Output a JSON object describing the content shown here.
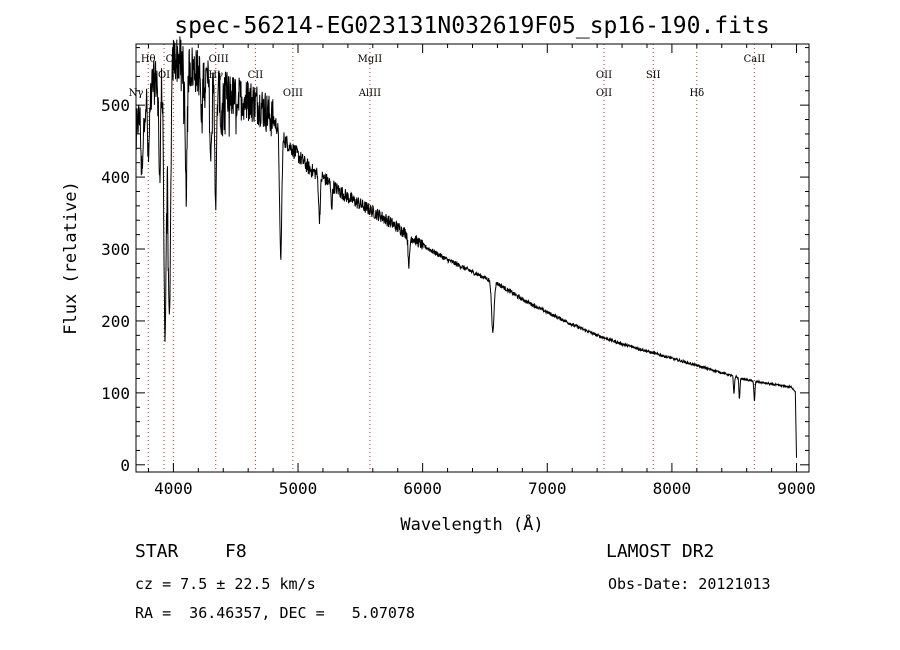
{
  "chart_data": {
    "type": "line",
    "title": "spec-56214-EG023131N032619F05_sp16-190.fits",
    "xlabel": "Wavelength (Å)",
    "ylabel": "Flux (relative)",
    "xlim": [
      3700,
      9100
    ],
    "ylim": [
      -10,
      585
    ],
    "x_ticks": [
      4000,
      5000,
      6000,
      7000,
      8000,
      9000
    ],
    "y_ticks": [
      0,
      100,
      200,
      300,
      400,
      500
    ],
    "x_tick_labels": [
      "4000",
      "5000",
      "6000",
      "7000",
      "8000",
      "9000"
    ],
    "y_tick_labels": [
      "0",
      "100",
      "200",
      "300",
      "400",
      "500"
    ],
    "colors": {
      "line": "#000000",
      "marker": "#c03030",
      "axis": "#000000"
    },
    "continuum": {
      "x": [
        3700,
        3800,
        3900,
        4000,
        4100,
        4200,
        4300,
        4400,
        4500,
        4600,
        4700,
        4800,
        4900,
        5000,
        5100,
        5200,
        5300,
        5400,
        5500,
        5600,
        5700,
        5800,
        5900,
        6000,
        6200,
        6400,
        6600,
        6800,
        7000,
        7200,
        7400,
        7600,
        7800,
        8000,
        8200,
        8400,
        8600,
        8800,
        8960,
        8990,
        9000
      ],
      "y": [
        470,
        520,
        545,
        565,
        560,
        545,
        530,
        520,
        510,
        508,
        500,
        480,
        450,
        430,
        410,
        400,
        385,
        372,
        362,
        352,
        342,
        330,
        318,
        305,
        285,
        268,
        252,
        230,
        212,
        195,
        180,
        168,
        158,
        148,
        138,
        128,
        118,
        112,
        108,
        102,
        10
      ]
    },
    "absorption_features": [
      {
        "x": 3750,
        "depth": 90,
        "width": 12
      },
      {
        "x": 3800,
        "depth": 100,
        "width": 10
      },
      {
        "x": 3890,
        "depth": 140,
        "width": 10
      },
      {
        "x": 3933,
        "depth": 370,
        "width": 14
      },
      {
        "x": 3968,
        "depth": 360,
        "width": 14
      },
      {
        "x": 4102,
        "depth": 180,
        "width": 12
      },
      {
        "x": 4226,
        "depth": 60,
        "width": 8
      },
      {
        "x": 4300,
        "depth": 110,
        "width": 10
      },
      {
        "x": 4340,
        "depth": 160,
        "width": 10
      },
      {
        "x": 4383,
        "depth": 50,
        "width": 8
      },
      {
        "x": 4861,
        "depth": 175,
        "width": 12
      },
      {
        "x": 5172,
        "depth": 60,
        "width": 10
      },
      {
        "x": 5270,
        "depth": 30,
        "width": 8
      },
      {
        "x": 5890,
        "depth": 40,
        "width": 10
      },
      {
        "x": 6563,
        "depth": 70,
        "width": 14
      },
      {
        "x": 8498,
        "depth": 25,
        "width": 6
      },
      {
        "x": 8542,
        "depth": 30,
        "width": 6
      },
      {
        "x": 8662,
        "depth": 28,
        "width": 6
      }
    ],
    "line_markers": [
      {
        "label": "Hθ",
        "x": 3798,
        "row": 1
      },
      {
        "label": "Nγ",
        "x": 3700,
        "row": 3
      },
      {
        "label": "OI",
        "x": 3925,
        "row": 2
      },
      {
        "label": "CII",
        "x": 4000,
        "row": 1
      },
      {
        "label": "OIII",
        "x": 4363,
        "row": 1
      },
      {
        "label": "Hγ",
        "x": 4340,
        "row": 2
      },
      {
        "label": "CII",
        "x": 4658,
        "row": 2
      },
      {
        "label": "OIII",
        "x": 4959,
        "row": 3
      },
      {
        "label": "MgII",
        "x": 5577,
        "row": 1
      },
      {
        "label": "AlIII",
        "x": 5577,
        "row": 3
      },
      {
        "label": "OII",
        "x": 7455,
        "row": 2
      },
      {
        "label": "OII",
        "x": 7455,
        "row": 3
      },
      {
        "label": "SII",
        "x": 7850,
        "row": 2
      },
      {
        "label": "Hδ",
        "x": 8200,
        "row": 3
      },
      {
        "label": "CaII",
        "x": 8662,
        "row": 1
      }
    ],
    "marker_lines_x": [
      3798,
      3925,
      4000,
      4340,
      4658,
      4959,
      5577,
      7455,
      7850,
      8200,
      8662
    ]
  },
  "info": {
    "object_class": "STAR",
    "subclass": "F8",
    "survey": "LAMOST DR2",
    "redshift": "cz = 7.5 ± 22.5 km/s",
    "obs_date": "Obs-Date: 20121013",
    "coords": "RA =  36.46357, DEC =   5.07078"
  }
}
